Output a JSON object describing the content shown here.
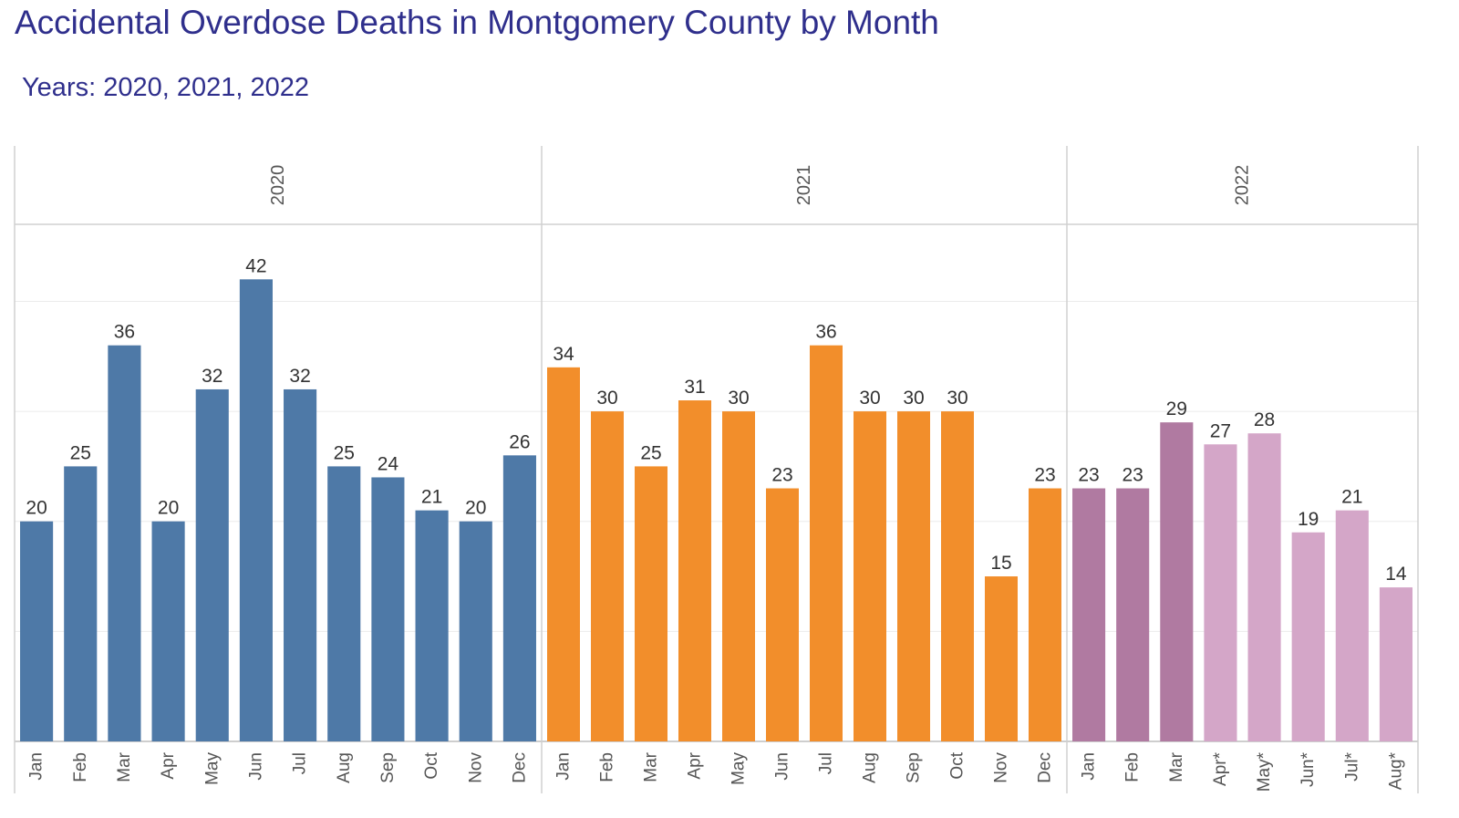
{
  "title": "Accidental Overdose Deaths in Montgomery County by Month",
  "subtitle": "Years: 2020, 2021, 2022",
  "chart_data": {
    "type": "bar",
    "title": "Accidental Overdose Deaths in Montgomery County by Month",
    "subtitle": "Years: 2020, 2021, 2022",
    "xlabel": "",
    "ylabel": "",
    "ylim": [
      0,
      47
    ],
    "grid": true,
    "y_gridlines": [
      0,
      10,
      20,
      30,
      40
    ],
    "data_labels": true,
    "panels": [
      {
        "name": "2020",
        "color": "#4e79a7",
        "categories": [
          "Jan",
          "Feb",
          "Mar",
          "Apr",
          "May",
          "Jun",
          "Jul",
          "Aug",
          "Sep",
          "Oct",
          "Nov",
          "Dec"
        ],
        "values": [
          20,
          25,
          36,
          20,
          32,
          42,
          32,
          25,
          24,
          21,
          20,
          26
        ],
        "colors": []
      },
      {
        "name": "2021",
        "color": "#f28e2b",
        "categories": [
          "Jan",
          "Feb",
          "Mar",
          "Apr",
          "May",
          "Jun",
          "Jul",
          "Aug",
          "Sep",
          "Oct",
          "Nov",
          "Dec"
        ],
        "values": [
          34,
          30,
          25,
          31,
          30,
          23,
          36,
          30,
          30,
          30,
          15,
          23
        ],
        "colors": []
      },
      {
        "name": "2022",
        "color": "#b07aa1",
        "categories": [
          "Jan",
          "Feb",
          "Mar",
          "Apr*",
          "May*",
          "Jun*",
          "Jul*",
          "Aug*"
        ],
        "values": [
          23,
          23,
          29,
          27,
          28,
          19,
          21,
          14
        ],
        "colors": [
          "#b07aa1",
          "#b07aa1",
          "#b07aa1",
          "#d4a6c8",
          "#d4a6c8",
          "#d4a6c8",
          "#d4a6c8",
          "#d4a6c8"
        ]
      }
    ]
  }
}
